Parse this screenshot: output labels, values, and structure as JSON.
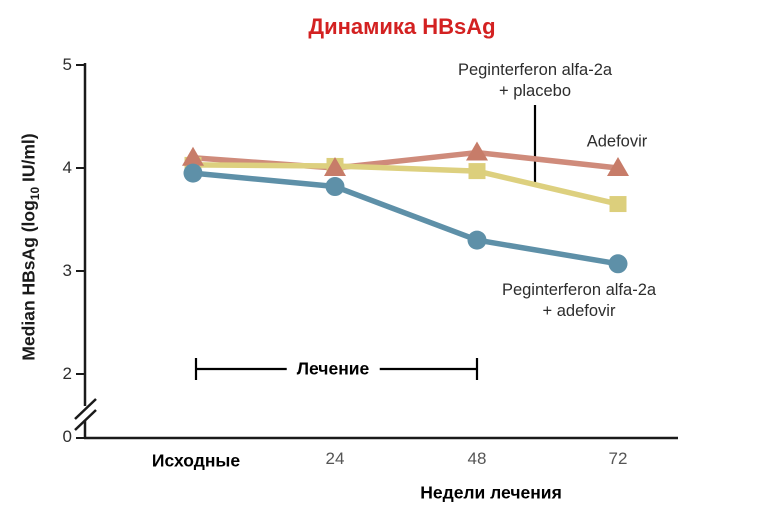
{
  "title": {
    "text": "Динамика HBsAg",
    "color": "#d32121"
  },
  "chart_data": {
    "type": "line",
    "title": "Динамика HBsAg",
    "xlabel": "Недели лечения",
    "ylabel": "Median HBsAg (log10 IU/ml)",
    "ylabel_parts": {
      "pre": "Median HBsAg (log",
      "sub": "10",
      "post": " IU/ml)"
    },
    "x_categories": [
      "Исходные",
      "24",
      "48",
      "72"
    ],
    "y_ticks": [
      "5",
      "4",
      "3",
      "2",
      "0"
    ],
    "y_axis_break": true,
    "ylim_display": [
      2,
      5
    ],
    "grid": false,
    "legend_position": "inline-annotations",
    "series": [
      {
        "name": "Adefovir",
        "marker": "triangle",
        "color": "#c77c69",
        "line_color": "#cf8b7b",
        "values": [
          4.1,
          4.0,
          4.15,
          4.0
        ]
      },
      {
        "name": "Peginterferon alfa-2a + placebo",
        "marker": "square",
        "color": "#dccf7c",
        "line_color": "#ddd07f",
        "values": [
          4.03,
          4.02,
          3.97,
          3.65
        ]
      },
      {
        "name": "Peginterferon alfa-2a + adefovir",
        "marker": "circle",
        "color": "#5e90a8",
        "line_color": "#5e90a8",
        "values": [
          3.95,
          3.82,
          3.3,
          3.07
        ]
      }
    ],
    "annotations": {
      "placebo_label": {
        "line1": "Peginterferon alfa-2a",
        "line2": "+ placebo"
      },
      "adefovir_label": "Adefovir",
      "combo_label": {
        "line1": "Peginterferon alfa-2a",
        "line2": "+ adefovir"
      },
      "treatment_bracket": {
        "label": "Лечение",
        "from_category": "Исходные",
        "to_category": "48"
      }
    }
  }
}
